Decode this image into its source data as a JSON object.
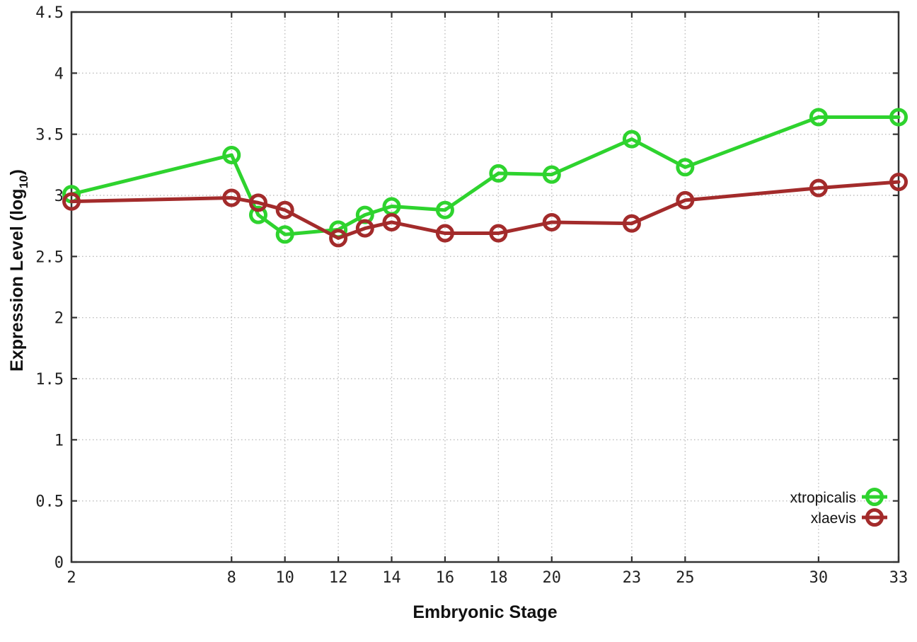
{
  "figure": {
    "background_color": "#ffffff",
    "axis_color": "#333333",
    "grid_color": "#bdbdbd",
    "tick_label_color": "#222222"
  },
  "chart_data": {
    "type": "line",
    "title": "",
    "xlabel": "Embryonic Stage",
    "ylabel": {
      "pre": "Expression Level (log",
      "sub": "10",
      "post": ")"
    },
    "xlim": [
      2,
      33
    ],
    "ylim": [
      0,
      4.5
    ],
    "grid": true,
    "legend_position": "bottom-right-inside",
    "x": [
      2,
      8,
      9,
      10,
      12,
      13,
      14,
      16,
      18,
      20,
      23,
      25,
      30,
      33
    ],
    "series": [
      {
        "name": "xtropicalis",
        "color": "#2ed32e",
        "values": [
          3.01,
          3.33,
          2.84,
          2.68,
          2.72,
          2.84,
          2.91,
          2.88,
          3.18,
          3.17,
          3.46,
          3.23,
          3.64,
          3.64
        ]
      },
      {
        "name": "xlaevis",
        "color": "#a32b2b",
        "values": [
          2.95,
          2.98,
          2.94,
          2.88,
          2.65,
          2.73,
          2.78,
          2.69,
          2.69,
          2.78,
          2.77,
          2.96,
          3.06,
          3.11
        ]
      }
    ],
    "xticks": [
      {
        "v": 2,
        "label": "2"
      },
      {
        "v": 8,
        "label": "8"
      },
      {
        "v": 10,
        "label": "10"
      },
      {
        "v": 12,
        "label": "12"
      },
      {
        "v": 14,
        "label": "14"
      },
      {
        "v": 16,
        "label": "16"
      },
      {
        "v": 18,
        "label": "18"
      },
      {
        "v": 20,
        "label": "20"
      },
      {
        "v": 23,
        "label": "23"
      },
      {
        "v": 25,
        "label": "25"
      },
      {
        "v": 30,
        "label": "30"
      },
      {
        "v": 33,
        "label": "33"
      }
    ],
    "yticks": [
      {
        "v": 0,
        "label": "0"
      },
      {
        "v": 0.5,
        "label": "0.5"
      },
      {
        "v": 1,
        "label": "1"
      },
      {
        "v": 1.5,
        "label": "1.5"
      },
      {
        "v": 2,
        "label": "2"
      },
      {
        "v": 2.5,
        "label": "2.5"
      },
      {
        "v": 3,
        "label": "3"
      },
      {
        "v": 3.5,
        "label": "3.5"
      },
      {
        "v": 4,
        "label": "4"
      },
      {
        "v": 4.5,
        "label": "4.5"
      }
    ]
  }
}
